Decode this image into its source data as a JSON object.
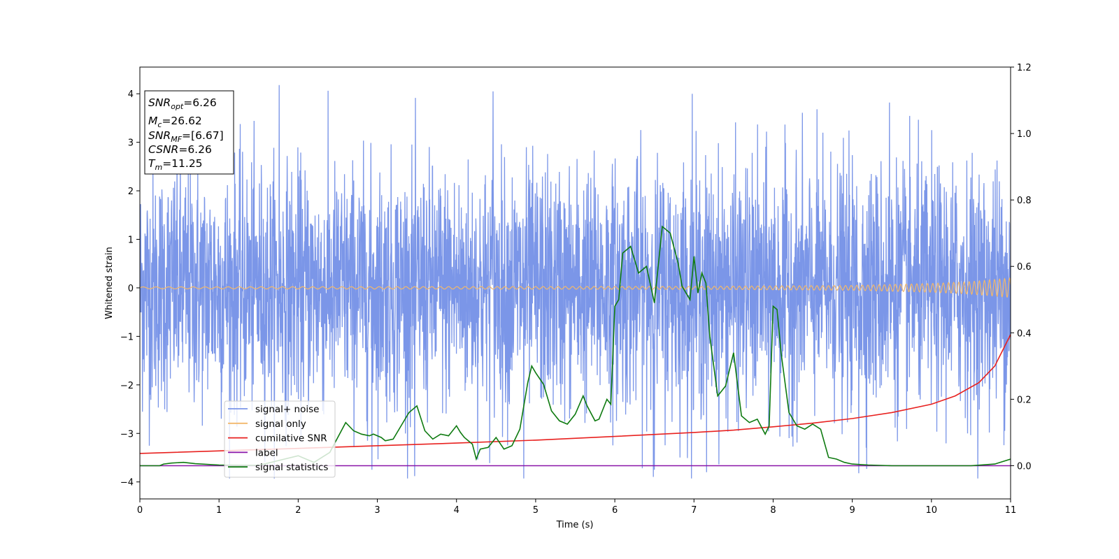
{
  "chart_data": {
    "type": "line",
    "xlabel": "Time (s)",
    "ylabel": "Whitened strain",
    "xlim": [
      0,
      11
    ],
    "ylim": [
      -4.35,
      4.55
    ],
    "y2lim": [
      -0.1,
      1.2
    ],
    "xticks": [
      "0",
      "1",
      "2",
      "3",
      "4",
      "5",
      "6",
      "7",
      "8",
      "9",
      "10",
      "11"
    ],
    "yticks": [
      "4",
      "3",
      "2",
      "1",
      "0",
      "−1",
      "−2",
      "−3",
      "−4"
    ],
    "y2ticks": [
      "0.0",
      "0.2",
      "0.4",
      "0.6",
      "0.8",
      "1.0",
      "1.2"
    ],
    "legend_position": "lower-left",
    "annotation": {
      "lines": [
        {
          "sym": "SNR",
          "sub": "opt",
          "value": "=6.26"
        },
        {
          "sym": "M",
          "sub": "c",
          "value": "=26.62"
        },
        {
          "sym": "SNR",
          "sub": "MF",
          "value": "=[6.67]"
        },
        {
          "sym": "CSNR",
          "sub": "",
          "value": "=6.26"
        },
        {
          "sym": "T",
          "sub": "m",
          "value": "=11.25"
        }
      ]
    },
    "series": [
      {
        "name": "signal+ noise",
        "color": "#7b96e8",
        "axis": "left",
        "envelope": {
          "typical_amplitude": 2.0,
          "max_peak": 4.18,
          "min_peak": -3.93
        },
        "peaks": [
          [
            1.76,
            4.18
          ],
          [
            4.46,
            4.05
          ],
          [
            6.98,
            4.0
          ],
          [
            9.47,
            3.82
          ],
          [
            4.85,
            -3.93
          ],
          [
            3.47,
            -3.88
          ],
          [
            9.08,
            -3.82
          ],
          [
            7.16,
            -3.8
          ],
          [
            2.93,
            -3.75
          ],
          [
            6.5,
            -3.75
          ]
        ]
      },
      {
        "name": "signal only",
        "color": "#f2b86b",
        "axis": "left",
        "amplitude": [
          [
            0,
            0.02
          ],
          [
            7,
            0.03
          ],
          [
            9,
            0.05
          ],
          [
            10,
            0.09
          ],
          [
            10.5,
            0.13
          ],
          [
            11,
            0.2
          ]
        ]
      },
      {
        "name": "cumilative SNR",
        "color": "#e8211f",
        "axis": "right",
        "x": [
          0,
          2,
          4,
          5,
          6,
          7,
          7.5,
          8,
          8.5,
          9,
          9.5,
          10,
          10.3,
          10.6,
          10.8,
          11
        ],
        "y": [
          0.037,
          0.052,
          0.068,
          0.077,
          0.088,
          0.1,
          0.107,
          0.117,
          0.128,
          0.142,
          0.16,
          0.185,
          0.21,
          0.25,
          0.3,
          0.395
        ]
      },
      {
        "name": "label",
        "color": "#8a14a8",
        "axis": "right",
        "x": [
          0,
          11
        ],
        "y": [
          0,
          0
        ]
      },
      {
        "name": "signal statistics",
        "color": "#0e7a10",
        "axis": "right",
        "x": [
          0,
          0.25,
          0.3,
          0.4,
          0.55,
          0.7,
          1,
          1.5,
          2,
          2.05,
          2.2,
          2.4,
          2.6,
          2.7,
          2.8,
          2.9,
          2.95,
          3.05,
          3.1,
          3.2,
          3.3,
          3.4,
          3.5,
          3.6,
          3.7,
          3.8,
          3.9,
          4,
          4.05,
          4.1,
          4.2,
          4.25,
          4.3,
          4.4,
          4.5,
          4.6,
          4.7,
          4.8,
          4.9,
          4.95,
          5,
          5.1,
          5.2,
          5.3,
          5.4,
          5.5,
          5.6,
          5.65,
          5.75,
          5.8,
          5.9,
          5.95,
          6,
          6.05,
          6.1,
          6.2,
          6.3,
          6.4,
          6.5,
          6.6,
          6.7,
          6.8,
          6.85,
          6.95,
          7,
          7.05,
          7.1,
          7.15,
          7.2,
          7.3,
          7.4,
          7.5,
          7.6,
          7.7,
          7.8,
          7.9,
          7.95,
          8,
          8.05,
          8.1,
          8.2,
          8.3,
          8.4,
          8.5,
          8.6,
          8.7,
          8.8,
          8.9,
          9,
          9.2,
          9.5,
          10,
          10.5,
          10.8,
          11
        ],
        "y": [
          0,
          0,
          0.005,
          0.008,
          0.01,
          0.006,
          0.002,
          0.001,
          0.03,
          0.025,
          0.01,
          0.04,
          0.13,
          0.105,
          0.095,
          0.09,
          0.095,
          0.085,
          0.075,
          0.08,
          0.12,
          0.16,
          0.18,
          0.105,
          0.08,
          0.095,
          0.09,
          0.12,
          0.1,
          0.085,
          0.065,
          0.02,
          0.05,
          0.055,
          0.085,
          0.05,
          0.06,
          0.11,
          0.25,
          0.3,
          0.28,
          0.245,
          0.165,
          0.135,
          0.125,
          0.155,
          0.21,
          0.18,
          0.135,
          0.14,
          0.2,
          0.185,
          0.48,
          0.5,
          0.64,
          0.66,
          0.58,
          0.6,
          0.49,
          0.72,
          0.7,
          0.61,
          0.54,
          0.5,
          0.63,
          0.52,
          0.58,
          0.55,
          0.39,
          0.21,
          0.24,
          0.34,
          0.15,
          0.13,
          0.14,
          0.095,
          0.12,
          0.48,
          0.47,
          0.34,
          0.16,
          0.12,
          0.11,
          0.125,
          0.11,
          0.025,
          0.02,
          0.01,
          0.005,
          0.002,
          0,
          0,
          0,
          0.005,
          0.02
        ]
      }
    ]
  }
}
